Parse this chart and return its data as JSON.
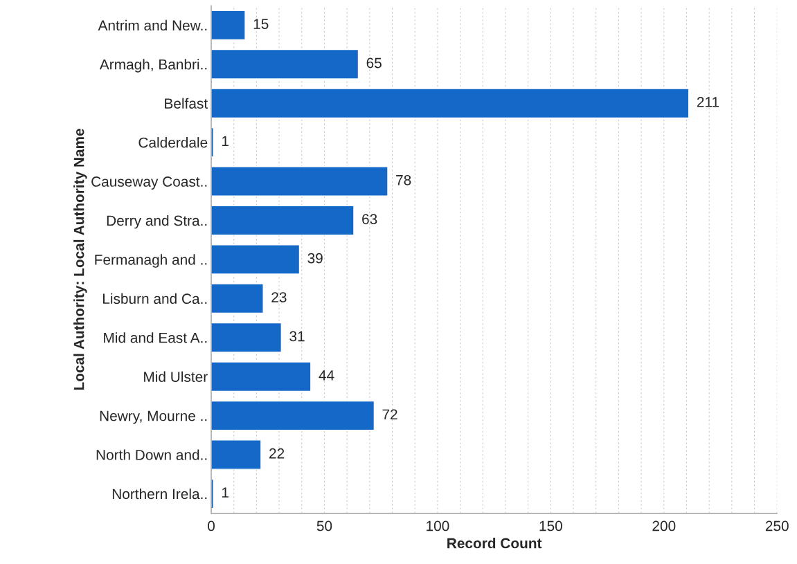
{
  "chart_data": {
    "type": "bar",
    "orientation": "horizontal",
    "xlabel": "Record Count",
    "ylabel": "Local Authority: Local Authority Name",
    "categories": [
      "Antrim and New..",
      "Armagh, Banbri..",
      "Belfast",
      "Calderdale",
      "Causeway Coast..",
      "Derry and Stra..",
      "Fermanagh and ..",
      "Lisburn and Ca..",
      "Mid and East A..",
      "Mid Ulster",
      "Newry, Mourne ..",
      "North Down and..",
      "Northern Irela.."
    ],
    "values": [
      15,
      65,
      211,
      1,
      78,
      63,
      39,
      23,
      31,
      44,
      72,
      22,
      1
    ],
    "color": "#1468c8",
    "data_labels": true,
    "xlim": [
      0,
      250
    ],
    "xticks": [
      0,
      {
        "value": 10,
        "label": null
      },
      {
        "value": 20,
        "label": null
      },
      {
        "value": 30,
        "label": null
      },
      {
        "value": 40,
        "label": null
      },
      50,
      {
        "value": 60,
        "label": null
      },
      {
        "value": 70,
        "label": null
      },
      {
        "value": 80,
        "label": null
      },
      {
        "value": 90,
        "label": null
      },
      100,
      {
        "value": 110,
        "label": null
      },
      {
        "value": 120,
        "label": null
      },
      {
        "value": 130,
        "label": null
      },
      {
        "value": 140,
        "label": null
      },
      150,
      {
        "value": 160,
        "label": null
      },
      {
        "value": 170,
        "label": null
      },
      {
        "value": 180,
        "label": null
      },
      {
        "value": 190,
        "label": null
      },
      200,
      {
        "value": 210,
        "label": null
      },
      {
        "value": 220,
        "label": null
      },
      {
        "value": 230,
        "label": null
      },
      {
        "value": 240,
        "label": null
      },
      250
    ],
    "grid": "x",
    "legend": false
  }
}
